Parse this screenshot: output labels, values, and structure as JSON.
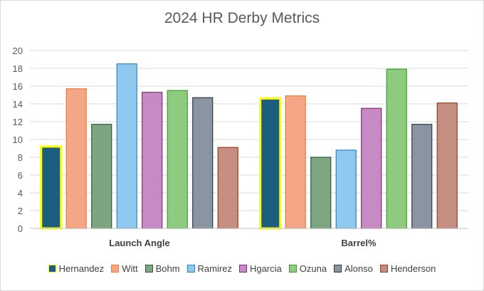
{
  "chart_data": {
    "type": "bar",
    "title": "2024 HR Derby Metrics",
    "categories": [
      "Launch Angle",
      "Barrel%"
    ],
    "ylim": [
      0,
      20
    ],
    "yticks": [
      0,
      2,
      4,
      6,
      8,
      10,
      12,
      14,
      16,
      18,
      20
    ],
    "grid": true,
    "legend_position": "bottom",
    "series": [
      {
        "name": "Hernandez",
        "values": [
          9.2,
          14.6
        ],
        "fill": "#1b5e80",
        "stroke": "#ffff00"
      },
      {
        "name": "Witt",
        "values": [
          15.7,
          14.9
        ],
        "fill": "#f4a686",
        "stroke": "#ed7d31"
      },
      {
        "name": "Bohm",
        "values": [
          11.7,
          8.0
        ],
        "fill": "#7ea582",
        "stroke": "#2e5a36"
      },
      {
        "name": "Ramirez",
        "values": [
          18.5,
          8.8
        ],
        "fill": "#8fc9ef",
        "stroke": "#2e86c1"
      },
      {
        "name": "Hgarcia",
        "values": [
          15.3,
          13.5
        ],
        "fill": "#c68bc5",
        "stroke": "#7b2f7a"
      },
      {
        "name": "Ozuna",
        "values": [
          15.5,
          17.9
        ],
        "fill": "#8fcb7e",
        "stroke": "#3d9a2f"
      },
      {
        "name": "Alonso",
        "values": [
          14.7,
          11.7
        ],
        "fill": "#8995a0",
        "stroke": "#2b3a46"
      },
      {
        "name": "Henderson",
        "values": [
          9.1,
          14.1
        ],
        "fill": "#c48f82",
        "stroke": "#9b3b1f"
      }
    ]
  }
}
